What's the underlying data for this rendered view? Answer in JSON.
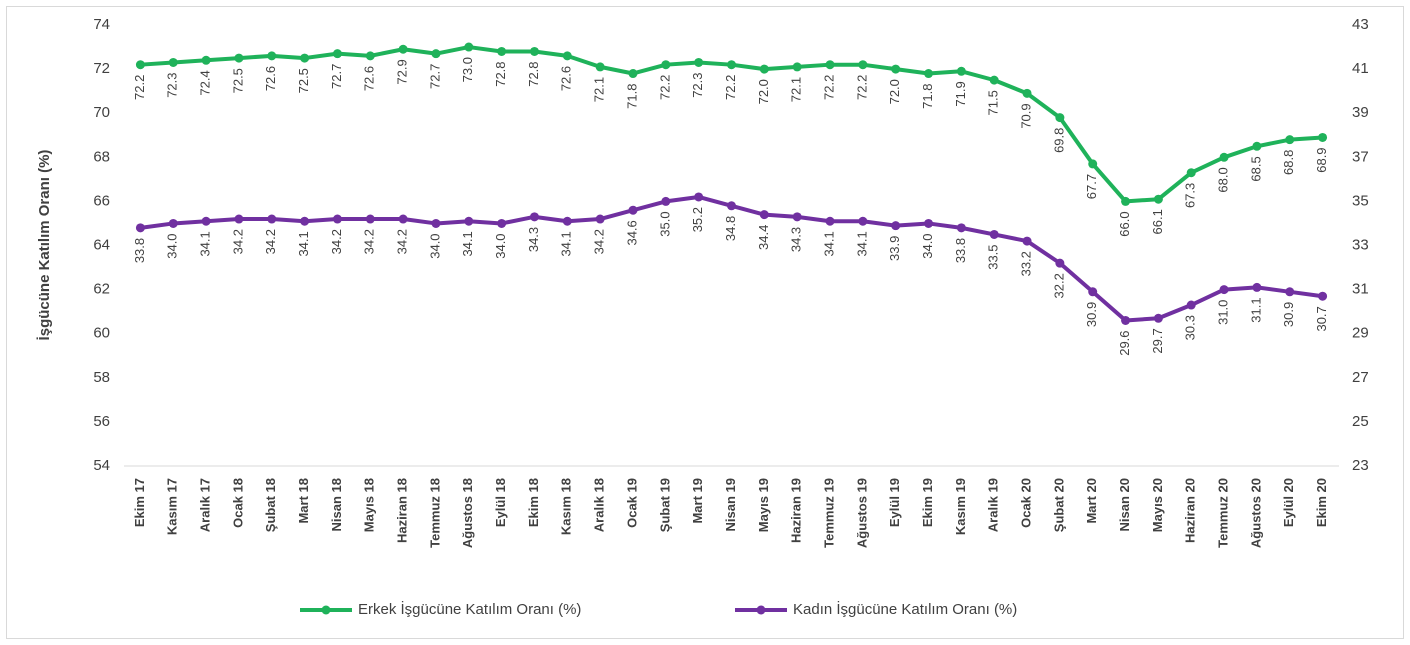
{
  "chart_data": {
    "type": "line",
    "y_label": "İşgücüne Katılım Oranı (%)",
    "categories": [
      "Ekim 17",
      "Kasım 17",
      "Aralık 17",
      "Ocak 18",
      "Şubat 18",
      "Mart 18",
      "Nisan 18",
      "Mayıs 18",
      "Haziran 18",
      "Temmuz 18",
      "Ağustos 18",
      "Eylül 18",
      "Ekim 18",
      "Kasım 18",
      "Aralık 18",
      "Ocak 19",
      "Şubat 19",
      "Mart 19",
      "Nisan 19",
      "Mayıs 19",
      "Haziran 19",
      "Temmuz 19",
      "Ağustos 19",
      "Eylül 19",
      "Ekim 19",
      "Kasım 19",
      "Aralık 19",
      "Ocak 20",
      "Şubat 20",
      "Mart 20",
      "Nisan 20",
      "Mayıs 20",
      "Haziran 20",
      "Temmuz 20",
      "Ağustos 20",
      "Eylül 20",
      "Ekim 20"
    ],
    "series": [
      {
        "name": "Erkek İşgücüne Katılım Oranı (%)",
        "color": "#1fb25a",
        "axis": "y",
        "values": [
          72.2,
          72.3,
          72.4,
          72.5,
          72.6,
          72.5,
          72.7,
          72.6,
          72.9,
          72.7,
          73.0,
          72.8,
          72.8,
          72.6,
          72.1,
          71.8,
          72.2,
          72.3,
          72.2,
          72.0,
          72.1,
          72.2,
          72.2,
          72.0,
          71.8,
          71.9,
          71.5,
          70.9,
          69.8,
          67.7,
          66.0,
          66.1,
          67.3,
          68.0,
          68.5,
          68.8,
          68.9
        ],
        "value_labels": [
          "72.2",
          "72.3",
          "72.4",
          "72.5",
          "72.6",
          "72.5",
          "72.7",
          "72.6",
          "72.9",
          "72.7",
          "73.0",
          "72.8",
          "72.8",
          "72.6",
          "72.1",
          "71.8",
          "72.2",
          "72.3",
          "72.2",
          "72.0",
          "72.1",
          "72.2",
          "72.2",
          "72.0",
          "71.8",
          "71.9",
          "71.5",
          "70.9",
          "69.8",
          "67.7",
          "66.0",
          "66.1",
          "67.3",
          "68.0",
          "68.5",
          "68.8",
          "68.9"
        ]
      },
      {
        "name": "Kadın İşgücüne Katılım Oranı (%)",
        "color": "#7030a0",
        "axis": "y2",
        "values": [
          33.8,
          34.0,
          34.1,
          34.2,
          34.2,
          34.1,
          34.2,
          34.2,
          34.2,
          34.0,
          34.1,
          34.0,
          34.3,
          34.1,
          34.2,
          34.6,
          35.0,
          35.2,
          34.8,
          34.4,
          34.3,
          34.1,
          34.1,
          33.9,
          34.0,
          33.8,
          33.5,
          33.2,
          32.2,
          30.9,
          29.6,
          29.7,
          30.3,
          31.0,
          31.1,
          30.9,
          30.7
        ],
        "value_labels": [
          "33.8",
          "34.0",
          "34.1",
          "34.2",
          "34.2",
          "34.1",
          "34.2",
          "34.2",
          "34.2",
          "34.0",
          "34.1",
          "34.0",
          "34.3",
          "34.1",
          "34.2",
          "34.6",
          "35.0",
          "35.2",
          "34.8",
          "34.4",
          "34.3",
          "34.1",
          "34.1",
          "33.9",
          "34.0",
          "33.8",
          "33.5",
          "33.2",
          "32.2",
          "30.9",
          "29.6",
          "29.7",
          "30.3",
          "31.0",
          "31.1",
          "30.9",
          "30.7"
        ]
      }
    ],
    "ylim": [
      54,
      74
    ],
    "yticks": [
      54,
      56,
      58,
      60,
      62,
      64,
      66,
      68,
      70,
      72,
      74
    ],
    "y2lim": [
      23,
      43
    ],
    "y2ticks": [
      23,
      25,
      27,
      29,
      31,
      33,
      35,
      37,
      39,
      41,
      43
    ],
    "legend": "bottom"
  }
}
